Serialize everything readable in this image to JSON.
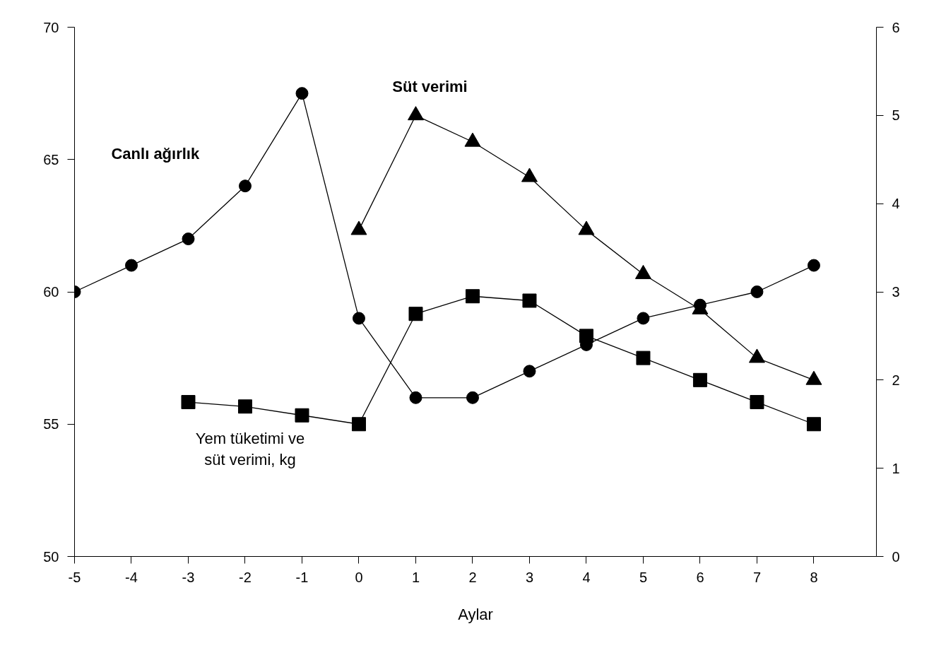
{
  "chart_data": {
    "type": "line",
    "xlabel": "Aylar",
    "x": [
      -5,
      -4,
      -3,
      -2,
      -1,
      0,
      1,
      2,
      3,
      4,
      5,
      6,
      7,
      8
    ],
    "xlim": [
      -5,
      9.1
    ],
    "xticks": [
      -5,
      -4,
      -3,
      -2,
      -1,
      0,
      1,
      2,
      3,
      4,
      5,
      6,
      7,
      8
    ],
    "ylim": [
      50,
      70
    ],
    "yticks": [
      50,
      55,
      60,
      65,
      70
    ],
    "y2lim": [
      0,
      6
    ],
    "y2ticks": [
      0,
      1,
      2,
      3,
      4,
      5,
      6
    ],
    "grid": false,
    "line_style": "solid",
    "series": [
      {
        "name": "Canlı ağırlık",
        "color": "#000000",
        "marker": "circle",
        "values": [
          60,
          61,
          62,
          64,
          67.5,
          59,
          56,
          56,
          57,
          58,
          59,
          59.5,
          60,
          61
        ]
      },
      {
        "name": "Süt verimi",
        "color": "#000000",
        "marker": "triangle",
        "axis": "y2",
        "values": [
          null,
          null,
          null,
          null,
          null,
          3.7,
          5.0,
          4.7,
          4.3,
          3.7,
          3.2,
          2.8,
          2.25,
          2.0
        ]
      },
      {
        "name": "Yem tüketimi ve\nsüt verimi, kg",
        "color": "#000000",
        "marker": "square",
        "axis": "y2",
        "values": [
          null,
          null,
          1.75,
          1.7,
          1.6,
          1.5,
          2.75,
          2.95,
          2.9,
          2.5,
          2.25,
          2.0,
          1.75,
          1.5
        ]
      }
    ]
  }
}
